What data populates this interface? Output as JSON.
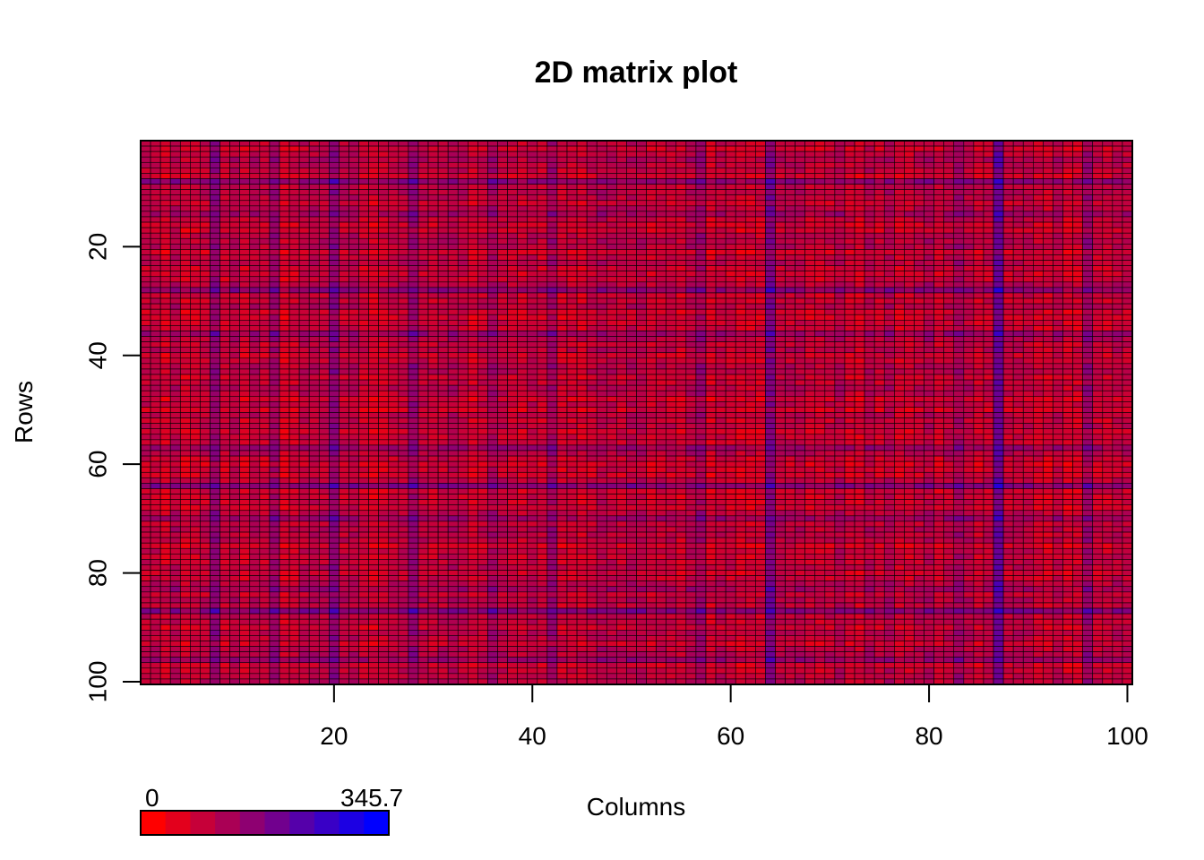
{
  "chart_data": {
    "type": "heatmap",
    "title": "2D matrix plot",
    "xlabel": "Columns",
    "ylabel": "Rows",
    "n_rows": 100,
    "n_cols": 100,
    "x_ticks": [
      20,
      40,
      60,
      80,
      100
    ],
    "y_ticks": [
      20,
      40,
      60,
      80,
      100
    ],
    "value_range": [
      0,
      345.7
    ],
    "colorscale": {
      "low_label": "0",
      "high_label": "345.7",
      "low_color": "#FF0000",
      "high_color": "#0000FF",
      "n_steps": 10
    },
    "cell_border_color": "#000000",
    "high_value_columns": [
      64,
      87
    ],
    "high_value_rows": [
      64,
      87
    ],
    "elevated_columns": [
      8,
      14,
      20,
      28,
      36,
      42,
      57,
      83,
      96
    ],
    "elevated_rows": [
      8,
      14,
      28,
      36,
      57,
      70,
      83,
      96
    ]
  }
}
